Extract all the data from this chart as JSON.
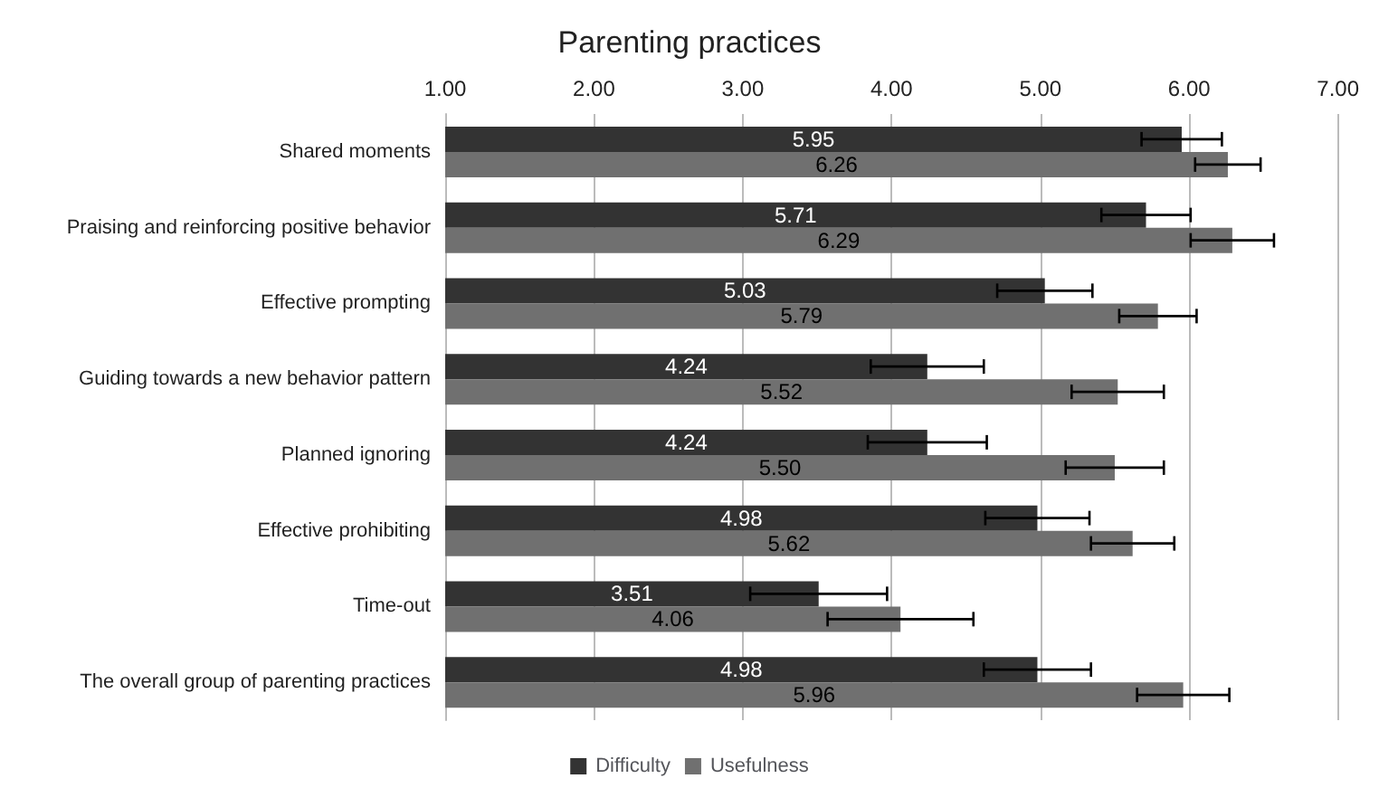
{
  "chart_data": {
    "type": "bar",
    "orientation": "horizontal",
    "title": "Parenting practices",
    "categories": [
      "Shared moments",
      "Praising and reinforcing positive behavior",
      "Effective prompting",
      "Guiding towards a new behavior pattern",
      "Planned ignoring",
      "Effective prohibiting",
      "Time-out",
      "The overall group of parenting practices"
    ],
    "series": [
      {
        "name": "Difficulty",
        "color": "#333333",
        "values": [
          5.95,
          5.71,
          5.03,
          4.24,
          4.24,
          4.98,
          3.51,
          4.98
        ],
        "errors": [
          0.27,
          0.3,
          0.32,
          0.38,
          0.4,
          0.35,
          0.46,
          0.36
        ],
        "value_labels": [
          "5.95",
          "5.71",
          "5.03",
          "4.24",
          "4.24",
          "4.98",
          "3.51",
          "4.98"
        ]
      },
      {
        "name": "Usefulness",
        "color": "#707070",
        "values": [
          6.26,
          6.29,
          5.79,
          5.52,
          5.5,
          5.62,
          4.06,
          5.96
        ],
        "errors": [
          0.22,
          0.28,
          0.26,
          0.31,
          0.33,
          0.28,
          0.49,
          0.31
        ],
        "value_labels": [
          "6.26",
          "6.29",
          "5.79",
          "5.52",
          "5.50",
          "5.62",
          "4.06",
          "5.96"
        ]
      }
    ],
    "xlim": [
      1,
      7
    ],
    "xticks": [
      {
        "value": 1,
        "label": "1.00"
      },
      {
        "value": 2,
        "label": "2.00"
      },
      {
        "value": 3,
        "label": "3.00"
      },
      {
        "value": 4,
        "label": "4.00"
      },
      {
        "value": 5,
        "label": "5.00"
      },
      {
        "value": 6,
        "label": "6.00"
      },
      {
        "value": 7,
        "label": "7.00"
      }
    ],
    "grid": "x",
    "legend": "bottom"
  }
}
